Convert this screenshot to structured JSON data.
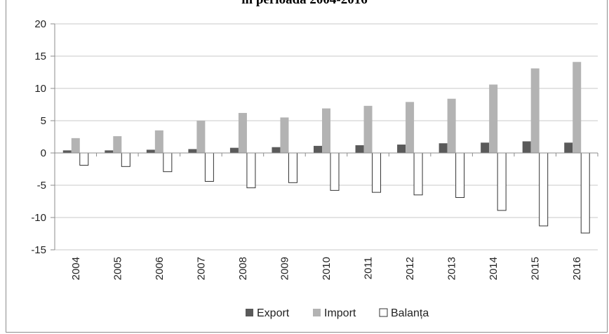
{
  "chart_data": {
    "type": "bar",
    "title": "în perioada 2004-2016",
    "categories": [
      "2004",
      "2005",
      "2006",
      "2007",
      "2008",
      "2009",
      "2010",
      "2011",
      "2012",
      "2013",
      "2014",
      "2015",
      "2016"
    ],
    "series": [
      {
        "name": "Export",
        "color": "#5a5a5a",
        "values": [
          0.4,
          0.4,
          0.5,
          0.6,
          0.8,
          0.9,
          1.1,
          1.2,
          1.3,
          1.5,
          1.6,
          1.8,
          1.6
        ]
      },
      {
        "name": "Import",
        "color": "#b3b3b3",
        "values": [
          2.3,
          2.6,
          3.5,
          5.0,
          6.2,
          5.5,
          6.9,
          7.3,
          7.9,
          8.4,
          10.6,
          13.1,
          14.1
        ]
      },
      {
        "name": "Balanța",
        "color": "#ffffff",
        "values": [
          -1.9,
          -2.1,
          -2.9,
          -4.4,
          -5.4,
          -4.6,
          -5.8,
          -6.1,
          -6.5,
          -6.9,
          -8.9,
          -11.3,
          -12.4
        ]
      }
    ],
    "ylim": [
      -15,
      20
    ],
    "yticks": [
      -15,
      -10,
      -5,
      0,
      5,
      10,
      15,
      20
    ],
    "grid": true,
    "legend": "bottom"
  }
}
